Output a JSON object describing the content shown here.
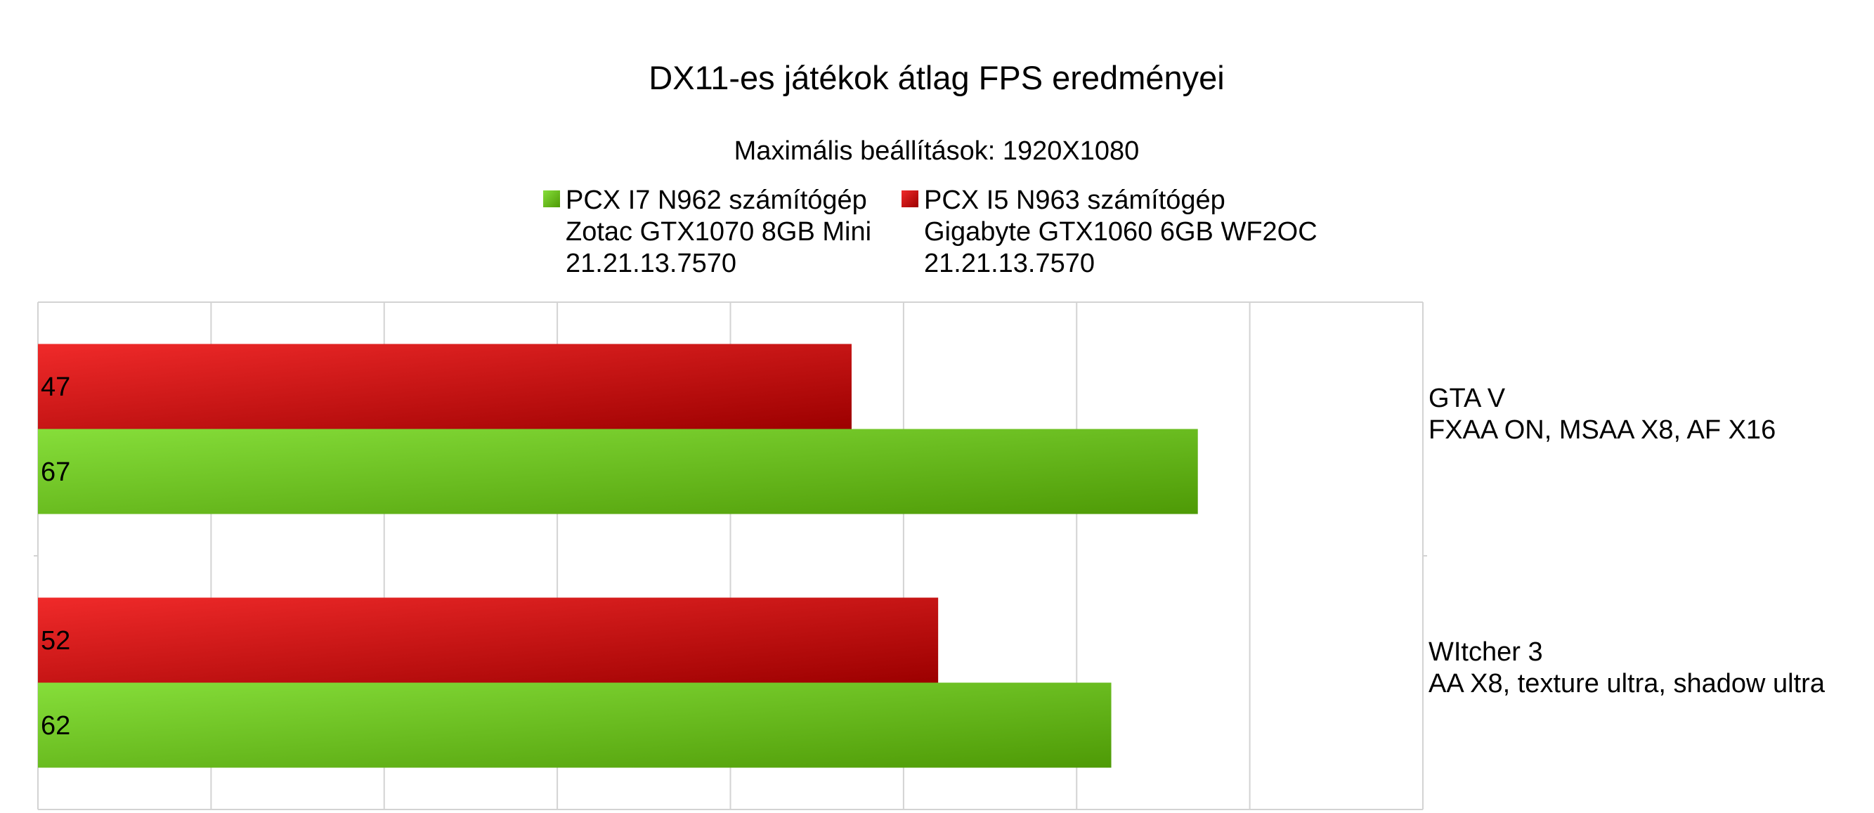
{
  "chart_data": {
    "type": "bar",
    "orientation": "horizontal",
    "title": "DX11-es játékok átlag FPS eredményei",
    "subtitle": "Maximális beállítások: 1920X1080",
    "categories": [
      {
        "lines": [
          "GTA V",
          "FXAA ON, MSAA X8, AF X16"
        ]
      },
      {
        "lines": [
          "WItcher 3",
          "AA X8, texture ultra, shadow ultra"
        ]
      }
    ],
    "series": [
      {
        "name_lines": [
          "PCX I7 N962 számítógép",
          "Zotac GTX1070 8GB Mini",
          "21.21.13.7570"
        ],
        "values": [
          67,
          62
        ],
        "color": "#5aa51c",
        "color_light": "#86de3a",
        "color_dark": "#4e9a06"
      },
      {
        "name_lines": [
          "PCX I5 N963 számítógép",
          "Gigabyte GTX1060 6GB WF2OC",
          "21.21.13.7570"
        ],
        "values": [
          47,
          52
        ],
        "color": "#c9211e",
        "color_light": "#f02a2a",
        "color_dark": "#9c0000"
      }
    ],
    "xlim": [
      0,
      80
    ],
    "x_gridlines": 8,
    "grid": true,
    "x_tick_labels": false,
    "legend_position": "top"
  }
}
